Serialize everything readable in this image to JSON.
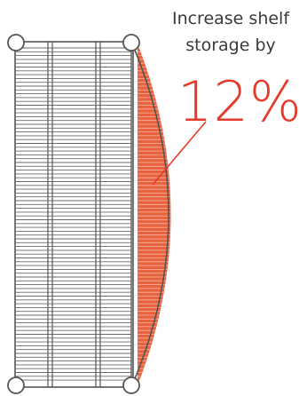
{
  "headline": {
    "line1": "Increase shelf",
    "line2": "storage by"
  },
  "percent_label": "12%",
  "colors": {
    "shelf_stroke": "#555555",
    "gain_fill": "#e8623f",
    "accent_text": "#e53a2a",
    "body_text": "#3a3a3a"
  }
}
